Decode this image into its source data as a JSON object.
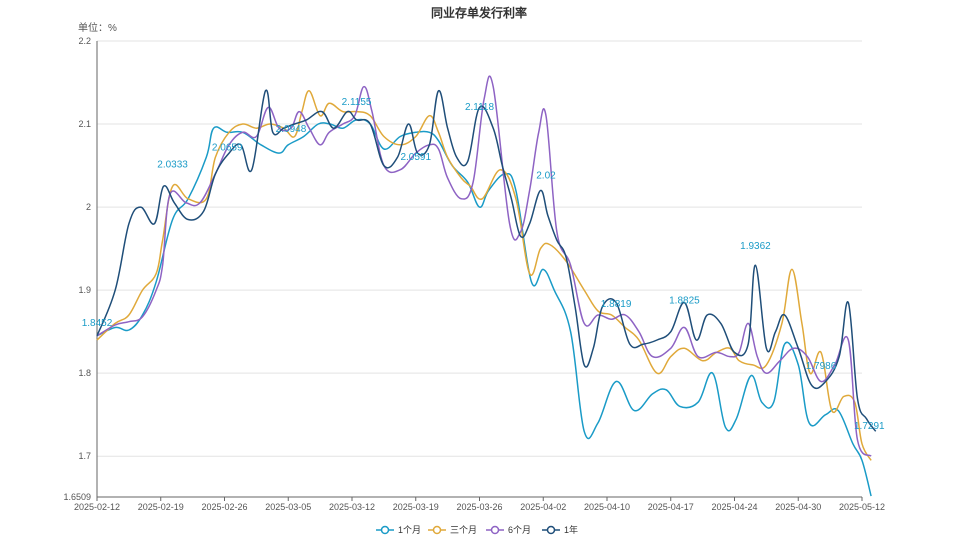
{
  "chart_data": {
    "type": "line",
    "title": "同业存单发行利率",
    "ylabel": "单位：%",
    "xlabel": "",
    "ylim": [
      1.6509,
      2.2
    ],
    "y_ticks": [
      "1.6509",
      "1.7",
      "1.8",
      "1.9",
      "2",
      "2.1",
      "2.2"
    ],
    "y_tick_values": [
      1.6509,
      1.7,
      1.8,
      1.9,
      2.0,
      2.1,
      2.2
    ],
    "x_ticks": [
      "2025-02-12",
      "2025-02-19",
      "2025-02-26",
      "2025-03-05",
      "2025-03-12",
      "2025-03-19",
      "2025-03-26",
      "2025-04-02",
      "2025-04-10",
      "2025-04-17",
      "2025-04-24",
      "2025-04-30",
      "2025-05-12"
    ],
    "x_tick_values": [
      0,
      7,
      14,
      21,
      28,
      35,
      42,
      49,
      56,
      63,
      70,
      77,
      84
    ],
    "x_range": [
      0,
      84
    ],
    "grid": true,
    "legend_position": "bottom",
    "series": [
      {
        "name": "1个月",
        "color": "#1a9bc7",
        "points": [
          [
            0,
            1.845
          ],
          [
            2,
            1.855
          ],
          [
            3.5,
            1.852
          ],
          [
            5,
            1.87
          ],
          [
            6.5,
            1.91
          ],
          [
            8.3,
            1.985
          ],
          [
            10,
            2.01
          ],
          [
            12,
            2.06
          ],
          [
            12.8,
            2.095
          ],
          [
            14.3,
            2.09
          ],
          [
            16,
            2.09
          ],
          [
            18,
            2.075
          ],
          [
            20,
            2.065
          ],
          [
            21,
            2.075
          ],
          [
            22.7,
            2.085
          ],
          [
            24.3,
            2.1
          ],
          [
            25.6,
            2.1
          ],
          [
            27,
            2.095
          ],
          [
            28.5,
            2.105
          ],
          [
            30,
            2.1
          ],
          [
            31.5,
            2.07
          ],
          [
            33.3,
            2.085
          ],
          [
            35,
            2.09
          ],
          [
            36.5,
            2.09
          ],
          [
            37.5,
            2.08
          ],
          [
            39,
            2.05
          ],
          [
            40.7,
            2.03
          ],
          [
            42,
            2.0
          ],
          [
            43,
            2.02
          ],
          [
            44.8,
            2.04
          ],
          [
            46,
            2.02
          ],
          [
            47.7,
            1.91
          ],
          [
            49,
            1.925
          ],
          [
            50.2,
            1.9
          ],
          [
            52,
            1.85
          ],
          [
            53.5,
            1.73
          ],
          [
            55,
            1.74
          ],
          [
            57,
            1.79
          ],
          [
            59,
            1.755
          ],
          [
            61,
            1.775
          ],
          [
            62.5,
            1.78
          ],
          [
            64,
            1.76
          ],
          [
            66,
            1.765
          ],
          [
            67.6,
            1.8
          ],
          [
            69,
            1.735
          ],
          [
            70.2,
            1.745
          ],
          [
            71.8,
            1.797
          ],
          [
            73,
            1.765
          ],
          [
            74.3,
            1.765
          ],
          [
            75.5,
            1.835
          ],
          [
            77,
            1.81
          ],
          [
            78.2,
            1.74
          ],
          [
            80,
            1.75
          ],
          [
            81.4,
            1.755
          ],
          [
            83,
            1.715
          ],
          [
            84,
            1.695
          ],
          [
            85,
            1.652
          ]
        ]
      },
      {
        "name": "三个月",
        "color": "#e0a93a",
        "points": [
          [
            0,
            1.84
          ],
          [
            2,
            1.86
          ],
          [
            3.5,
            1.87
          ],
          [
            5,
            1.9
          ],
          [
            6.5,
            1.92
          ],
          [
            7.2,
            1.96
          ],
          [
            8.3,
            2.025
          ],
          [
            10,
            2.01
          ],
          [
            12,
            2.01
          ],
          [
            13,
            2.06
          ],
          [
            14.5,
            2.09
          ],
          [
            16,
            2.1
          ],
          [
            17.5,
            2.095
          ],
          [
            19,
            2.1
          ],
          [
            20.5,
            2.095
          ],
          [
            21.7,
            2.085
          ],
          [
            22.5,
            2.115
          ],
          [
            23.3,
            2.14
          ],
          [
            24.5,
            2.11
          ],
          [
            25.5,
            2.125
          ],
          [
            27,
            2.115
          ],
          [
            28.5,
            2.115
          ],
          [
            30,
            2.11
          ],
          [
            31.5,
            2.085
          ],
          [
            33.3,
            2.075
          ],
          [
            35,
            2.085
          ],
          [
            36.5,
            2.11
          ],
          [
            37.5,
            2.09
          ],
          [
            38.5,
            2.06
          ],
          [
            40,
            2.035
          ],
          [
            41,
            2.025
          ],
          [
            42.3,
            2.01
          ],
          [
            44.3,
            2.045
          ],
          [
            46,
            2.01
          ],
          [
            47.5,
            1.92
          ],
          [
            48.7,
            1.95
          ],
          [
            49.7,
            1.955
          ],
          [
            51.5,
            1.935
          ],
          [
            53.5,
            1.9
          ],
          [
            55,
            1.875
          ],
          [
            56.5,
            1.87
          ],
          [
            58,
            1.855
          ],
          [
            59.5,
            1.84
          ],
          [
            61.5,
            1.8
          ],
          [
            63,
            1.82
          ],
          [
            64.5,
            1.83
          ],
          [
            66.5,
            1.815
          ],
          [
            68,
            1.825
          ],
          [
            69.5,
            1.83
          ],
          [
            70.5,
            1.815
          ],
          [
            72,
            1.81
          ],
          [
            73.5,
            1.81
          ],
          [
            75.2,
            1.86
          ],
          [
            76.3,
            1.925
          ],
          [
            77.4,
            1.86
          ],
          [
            78.3,
            1.8
          ],
          [
            79.5,
            1.825
          ],
          [
            80.7,
            1.755
          ],
          [
            82,
            1.772
          ],
          [
            83.2,
            1.765
          ],
          [
            84,
            1.715
          ],
          [
            85,
            1.695
          ]
        ]
      },
      {
        "name": "6个月",
        "color": "#8e63c4",
        "points": [
          [
            0,
            1.845
          ],
          [
            2,
            1.858
          ],
          [
            3.5,
            1.862
          ],
          [
            5,
            1.868
          ],
          [
            6.5,
            1.9
          ],
          [
            7.2,
            1.93
          ],
          [
            8,
            2.015
          ],
          [
            9.8,
            2.005
          ],
          [
            11.3,
            2.005
          ],
          [
            13,
            2.04
          ],
          [
            14.5,
            2.075
          ],
          [
            16,
            2.09
          ],
          [
            17.5,
            2.085
          ],
          [
            18.8,
            2.12
          ],
          [
            20,
            2.095
          ],
          [
            21.3,
            2.095
          ],
          [
            22.2,
            2.115
          ],
          [
            23.3,
            2.095
          ],
          [
            24.5,
            2.075
          ],
          [
            25.5,
            2.09
          ],
          [
            27,
            2.1
          ],
          [
            28.3,
            2.11
          ],
          [
            29.3,
            2.145
          ],
          [
            30.2,
            2.115
          ],
          [
            31.5,
            2.05
          ],
          [
            33.3,
            2.045
          ],
          [
            35,
            2.065
          ],
          [
            36.5,
            2.075
          ],
          [
            37.5,
            2.07
          ],
          [
            38.5,
            2.035
          ],
          [
            40,
            2.01
          ],
          [
            41.3,
            2.03
          ],
          [
            42.5,
            2.13
          ],
          [
            43.5,
            2.145
          ],
          [
            45.3,
            1.98
          ],
          [
            46.5,
            1.97
          ],
          [
            47.5,
            2.02
          ],
          [
            48.5,
            2.09
          ],
          [
            49.3,
            2.11
          ],
          [
            50.5,
            1.97
          ],
          [
            52,
            1.93
          ],
          [
            53.5,
            1.86
          ],
          [
            55,
            1.87
          ],
          [
            56.5,
            1.865
          ],
          [
            58,
            1.87
          ],
          [
            59.5,
            1.85
          ],
          [
            61,
            1.82
          ],
          [
            63,
            1.83
          ],
          [
            64.5,
            1.855
          ],
          [
            66,
            1.82
          ],
          [
            68,
            1.825
          ],
          [
            69.5,
            1.82
          ],
          [
            70.5,
            1.825
          ],
          [
            71.5,
            1.86
          ],
          [
            72.5,
            1.82
          ],
          [
            73.5,
            1.8
          ],
          [
            75,
            1.815
          ],
          [
            76.5,
            1.83
          ],
          [
            78,
            1.82
          ],
          [
            79.5,
            1.79
          ],
          [
            81,
            1.81
          ],
          [
            82.5,
            1.84
          ],
          [
            83.5,
            1.72
          ],
          [
            85,
            1.7
          ]
        ]
      },
      {
        "name": "1年",
        "color": "#1f4e79",
        "points": [
          [
            0,
            1.845
          ],
          [
            2,
            1.9
          ],
          [
            3.5,
            1.98
          ],
          [
            4.8,
            2.0
          ],
          [
            6.3,
            1.98
          ],
          [
            7.3,
            2.025
          ],
          [
            8.5,
            2.005
          ],
          [
            10,
            1.985
          ],
          [
            11.7,
            1.995
          ],
          [
            13,
            2.04
          ],
          [
            14.5,
            2.065
          ],
          [
            15.8,
            2.075
          ],
          [
            17,
            2.045
          ],
          [
            18.5,
            2.14
          ],
          [
            19.3,
            2.09
          ],
          [
            20.5,
            2.095
          ],
          [
            21.7,
            2.1
          ],
          [
            23,
            2.105
          ],
          [
            24.7,
            2.115
          ],
          [
            26,
            2.095
          ],
          [
            27.5,
            2.115
          ],
          [
            28.5,
            2.105
          ],
          [
            30,
            2.1
          ],
          [
            31.5,
            2.05
          ],
          [
            33,
            2.06
          ],
          [
            34.2,
            2.1
          ],
          [
            35.2,
            2.065
          ],
          [
            36.5,
            2.075
          ],
          [
            37.5,
            2.14
          ],
          [
            38.5,
            2.095
          ],
          [
            39.5,
            2.06
          ],
          [
            40.7,
            2.055
          ],
          [
            42,
            2.12
          ],
          [
            43.5,
            2.095
          ],
          [
            44.5,
            2.05
          ],
          [
            45.5,
            2.01
          ],
          [
            46.5,
            1.965
          ],
          [
            47.5,
            1.98
          ],
          [
            48.7,
            2.02
          ],
          [
            49.5,
            1.99
          ],
          [
            50.5,
            1.96
          ],
          [
            51.5,
            1.94
          ],
          [
            52.5,
            1.88
          ],
          [
            53.5,
            1.81
          ],
          [
            54.5,
            1.83
          ],
          [
            55.5,
            1.88
          ],
          [
            57,
            1.885
          ],
          [
            58.5,
            1.835
          ],
          [
            60,
            1.835
          ],
          [
            61.5,
            1.84
          ],
          [
            63,
            1.85
          ],
          [
            64.5,
            1.885
          ],
          [
            65.8,
            1.84
          ],
          [
            67,
            1.87
          ],
          [
            68.5,
            1.86
          ],
          [
            70,
            1.825
          ],
          [
            71.5,
            1.835
          ],
          [
            72.3,
            1.93
          ],
          [
            73.5,
            1.83
          ],
          [
            74.5,
            1.85
          ],
          [
            75.5,
            1.87
          ],
          [
            77,
            1.83
          ],
          [
            78.5,
            1.785
          ],
          [
            80,
            1.79
          ],
          [
            81.5,
            1.82
          ],
          [
            82.5,
            1.885
          ],
          [
            83.5,
            1.77
          ],
          [
            84.5,
            1.745
          ],
          [
            85.5,
            1.73
          ]
        ]
      }
    ],
    "annotations": [
      {
        "text": "1.8452",
        "x": 0,
        "y": 1.845,
        "color": "#1a9bc7",
        "dx": 0,
        "dy": -10
      },
      {
        "text": "2.0333",
        "x": 8.3,
        "y": 2.033,
        "color": "#1a9bc7",
        "dx": 0,
        "dy": -12
      },
      {
        "text": "2.0659",
        "x": 14.3,
        "y": 2.066,
        "color": "#1a9bc7",
        "dx": 0,
        "dy": -2
      },
      {
        "text": "2.0948",
        "x": 21.3,
        "y": 2.095,
        "color": "#1a9bc7",
        "dx": 0,
        "dy": 4
      },
      {
        "text": "2.1155",
        "x": 28.5,
        "y": 2.1155,
        "color": "#1a9bc7",
        "dx": 0,
        "dy": -6
      },
      {
        "text": "2.0591",
        "x": 35,
        "y": 2.059,
        "color": "#1a9bc7",
        "dx": 0,
        "dy": 2
      },
      {
        "text": "2.1118",
        "x": 42,
        "y": 2.112,
        "color": "#1a9bc7",
        "dx": 0,
        "dy": -4
      },
      {
        "text": "2.02",
        "x": 49.3,
        "y": 2.02,
        "color": "#1a9bc7",
        "dx": 0,
        "dy": -12
      },
      {
        "text": "1.8819",
        "x": 57,
        "y": 1.882,
        "color": "#1a9bc7",
        "dx": 0,
        "dy": 2
      },
      {
        "text": "1.8825",
        "x": 64.5,
        "y": 1.8825,
        "color": "#1a9bc7",
        "dx": 0,
        "dy": -1
      },
      {
        "text": "1.9362",
        "x": 72.3,
        "y": 1.936,
        "color": "#1a9bc7",
        "dx": 0,
        "dy": -11
      },
      {
        "text": "1.7986",
        "x": 79.5,
        "y": 1.8,
        "color": "#1a9bc7",
        "dx": 0,
        "dy": -4
      },
      {
        "text": "1.7291",
        "x": 84.8,
        "y": 1.729,
        "color": "#1a9bc7",
        "dx": 0,
        "dy": -3
      }
    ]
  }
}
